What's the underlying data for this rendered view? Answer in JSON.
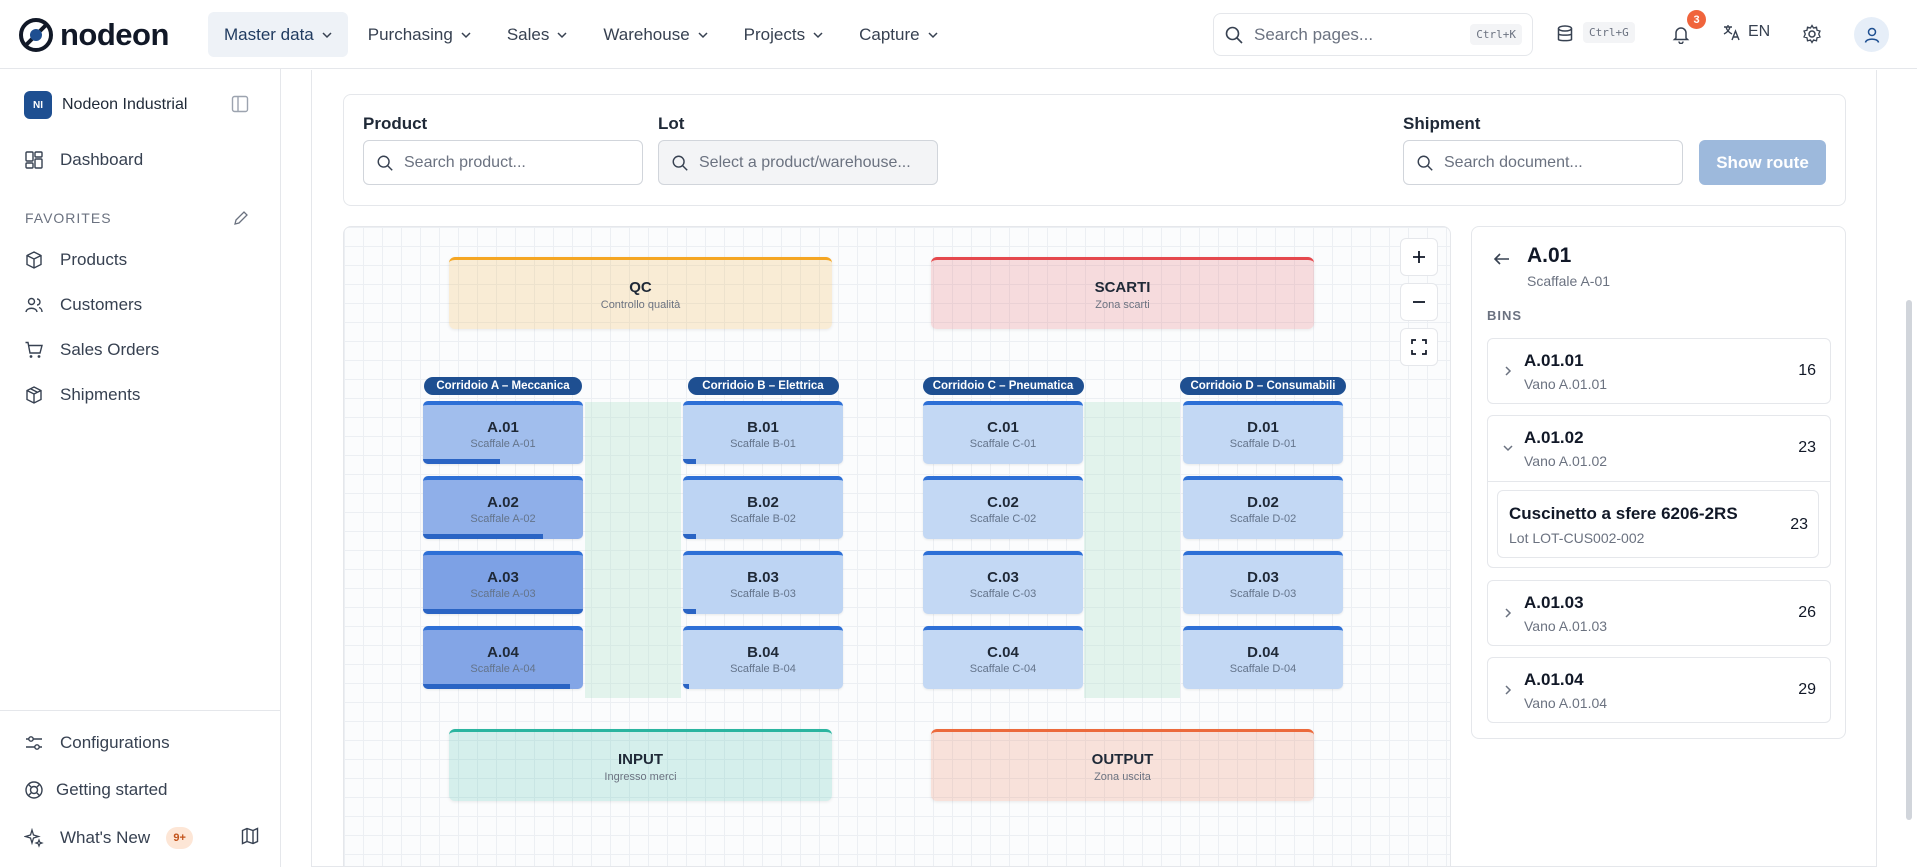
{
  "brand": {
    "name": "nodeon"
  },
  "nav": [
    {
      "label": "Master data",
      "active": true
    },
    {
      "label": "Purchasing"
    },
    {
      "label": "Sales"
    },
    {
      "label": "Warehouse"
    },
    {
      "label": "Projects"
    },
    {
      "label": "Capture"
    }
  ],
  "topbar": {
    "search_placeholder": "Search pages...",
    "search_shortcut": "Ctrl+K",
    "db_shortcut": "Ctrl+G",
    "notifications_count": "3",
    "language": "EN"
  },
  "sidebar": {
    "org_initials": "NI",
    "org_name": "Nodeon Industrial",
    "dashboard": "Dashboard",
    "favorites_heading": "FAVORITES",
    "favorites": [
      {
        "label": "Products",
        "icon": "box-icon"
      },
      {
        "label": "Customers",
        "icon": "users-icon"
      },
      {
        "label": "Sales Orders",
        "icon": "cart-icon"
      },
      {
        "label": "Shipments",
        "icon": "package-icon"
      }
    ],
    "bottom": {
      "configurations": "Configurations",
      "getting_started": "Getting started",
      "whats_new": "What's New",
      "whats_new_badge": "9+"
    }
  },
  "filters": {
    "product_label": "Product",
    "product_placeholder": "Search product...",
    "lot_label": "Lot",
    "lot_placeholder": "Select a product/warehouse...",
    "shipment_label": "Shipment",
    "shipment_placeholder": "Search document...",
    "show_route": "Show route"
  },
  "map": {
    "zones": {
      "qc": {
        "title": "QC",
        "subtitle": "Controllo qualità",
        "color": "#f5a623"
      },
      "scarti": {
        "title": "SCARTI",
        "subtitle": "Zona scarti",
        "color": "#e5484d"
      },
      "input": {
        "title": "INPUT",
        "subtitle": "Ingresso merci",
        "color": "#2bb5a0"
      },
      "output": {
        "title": "OUTPUT",
        "subtitle": "Zona uscita",
        "color": "#ec6a3c"
      }
    },
    "corridors": [
      {
        "label": "Corridoio A – Meccanica",
        "shelves": [
          {
            "code": "A.01",
            "name": "Scaffale A-01",
            "fill": 0.48
          },
          {
            "code": "A.02",
            "name": "Scaffale A-02",
            "fill": 0.75
          },
          {
            "code": "A.03",
            "name": "Scaffale A-03",
            "fill": 1.0
          },
          {
            "code": "A.04",
            "name": "Scaffale A-04",
            "fill": 0.92
          }
        ]
      },
      {
        "label": "Corridoio B – Elettrica",
        "shelves": [
          {
            "code": "B.01",
            "name": "Scaffale B-01",
            "fill": 0.08
          },
          {
            "code": "B.02",
            "name": "Scaffale B-02",
            "fill": 0.08
          },
          {
            "code": "B.03",
            "name": "Scaffale B-03",
            "fill": 0.08
          },
          {
            "code": "B.04",
            "name": "Scaffale B-04",
            "fill": 0.04
          }
        ]
      },
      {
        "label": "Corridoio C – Pneumatica",
        "shelves": [
          {
            "code": "C.01",
            "name": "Scaffale C-01",
            "fill": 0
          },
          {
            "code": "C.02",
            "name": "Scaffale C-02",
            "fill": 0
          },
          {
            "code": "C.03",
            "name": "Scaffale C-03",
            "fill": 0
          },
          {
            "code": "C.04",
            "name": "Scaffale C-04",
            "fill": 0
          }
        ]
      },
      {
        "label": "Corridoio D – Consumabili",
        "shelves": [
          {
            "code": "D.01",
            "name": "Scaffale D-01",
            "fill": 0
          },
          {
            "code": "D.02",
            "name": "Scaffale D-02",
            "fill": 0
          },
          {
            "code": "D.03",
            "name": "Scaffale D-03",
            "fill": 0
          },
          {
            "code": "D.04",
            "name": "Scaffale D-04",
            "fill": 0
          }
        ]
      }
    ]
  },
  "detail": {
    "title": "A.01",
    "subtitle": "Scaffale A-01",
    "bins_heading": "BINS",
    "bins": [
      {
        "code": "A.01.01",
        "name": "Vano A.01.01",
        "qty": "16"
      },
      {
        "code": "A.01.02",
        "name": "Vano A.01.02",
        "qty": "23",
        "expanded": true
      },
      {
        "code": "A.01.03",
        "name": "Vano A.01.03",
        "qty": "26"
      },
      {
        "code": "A.01.04",
        "name": "Vano A.01.04",
        "qty": "29"
      }
    ],
    "lot_item": {
      "product": "Cuscinetto a sfere 6206-2RS",
      "lot": "Lot LOT-CUS002-002",
      "qty": "23"
    }
  }
}
